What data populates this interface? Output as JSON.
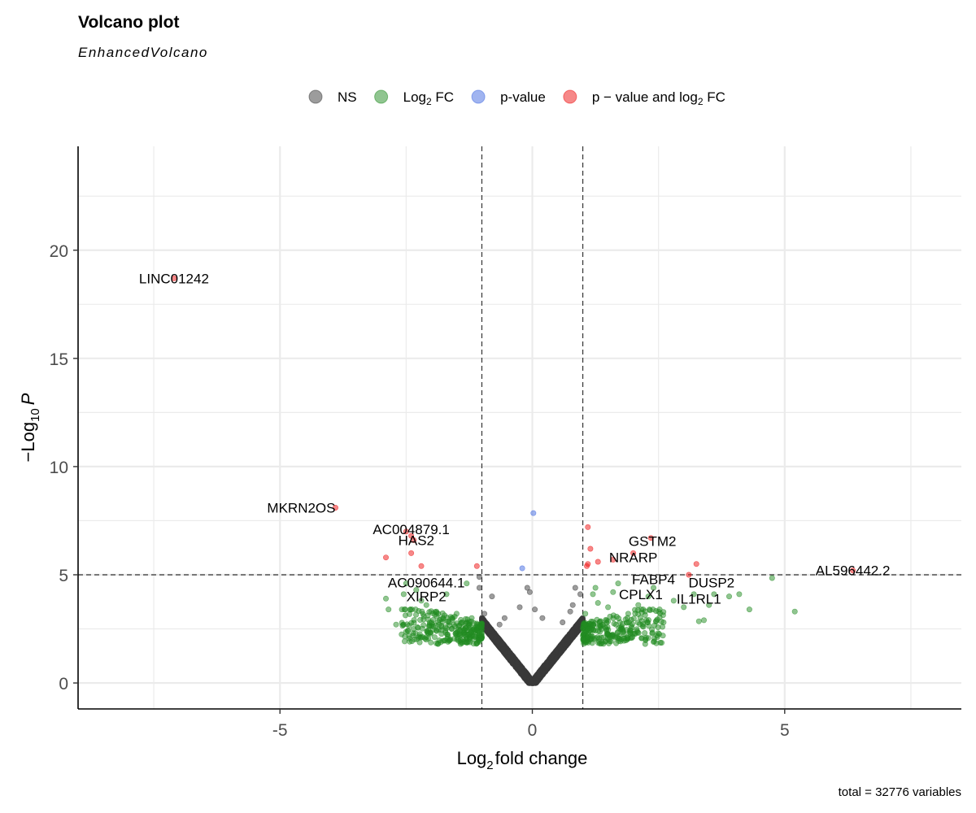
{
  "chart_data": {
    "type": "scatter",
    "title": "Volcano plot",
    "subtitle": "EnhancedVolcano",
    "caption": "total = 32776 variables",
    "xlabel": "fold change",
    "xlabel_prefix": "Log",
    "xlabel_sub": "2",
    "ylabel": "P",
    "ylabel_prefix": "−Log",
    "ylabel_sub": "10",
    "xlim": [
      -9.0,
      8.5
    ],
    "ylim": [
      -1.2,
      24.8
    ],
    "x_ticks": [
      -5,
      0,
      5
    ],
    "x_tick_labels": [
      "-5",
      "0",
      "5"
    ],
    "y_ticks": [
      0,
      5,
      10,
      15,
      20
    ],
    "y_tick_labels": [
      "0",
      "5",
      "10",
      "15",
      "20"
    ],
    "grid": true,
    "fc_cutoff": 1,
    "p_cutoff_log10": 5,
    "legend_position": "top",
    "legend": [
      {
        "key": "ns",
        "label": "NS",
        "color": "#3a3a3a"
      },
      {
        "key": "fc",
        "label": "Log",
        "sub": "2",
        "suffix": " FC",
        "color": "#228b22"
      },
      {
        "key": "p",
        "label": "p-value",
        "color": "#4169e1"
      },
      {
        "key": "both",
        "label": "p − value and log",
        "sub": "2",
        "suffix": " FC",
        "color": "#ee1111"
      }
    ],
    "series": [
      {
        "key": "both",
        "points": [
          [
            -7.1,
            18.7
          ],
          [
            -3.9,
            8.1
          ],
          [
            -2.5,
            7.0
          ],
          [
            -2.4,
            6.8
          ],
          [
            -2.35,
            6.6
          ],
          [
            -2.4,
            6.0
          ],
          [
            -2.9,
            5.8
          ],
          [
            -2.2,
            5.4
          ],
          [
            -1.1,
            5.4
          ],
          [
            1.1,
            5.5
          ],
          [
            1.15,
            6.2
          ],
          [
            1.1,
            7.2
          ],
          [
            1.3,
            5.6
          ],
          [
            1.6,
            5.7
          ],
          [
            2.0,
            6.0
          ],
          [
            2.35,
            6.7
          ],
          [
            3.1,
            5.0
          ],
          [
            3.25,
            5.5
          ],
          [
            6.35,
            5.2
          ],
          [
            1.08,
            5.4
          ]
        ]
      },
      {
        "key": "p",
        "points": [
          [
            0.02,
            7.85
          ],
          [
            -0.2,
            5.3
          ]
        ]
      },
      {
        "key": "fc",
        "points": [
          [
            -2.9,
            3.9
          ],
          [
            -2.85,
            3.4
          ],
          [
            -2.7,
            2.7
          ],
          [
            -2.55,
            4.1
          ],
          [
            -2.3,
            4.3
          ],
          [
            -2.2,
            3.8
          ],
          [
            -2.1,
            3.6
          ],
          [
            -1.9,
            3.3
          ],
          [
            -1.7,
            4.1
          ],
          [
            -1.5,
            3.2
          ],
          [
            -1.3,
            4.6
          ],
          [
            -2.5,
            4.6
          ],
          [
            -2.0,
            2.8
          ],
          [
            -1.8,
            2.6
          ],
          [
            -1.6,
            2.5
          ],
          [
            -1.4,
            2.8
          ],
          [
            -1.2,
            3.0
          ],
          [
            -1.1,
            2.6
          ],
          [
            1.2,
            4.1
          ],
          [
            1.3,
            3.7
          ],
          [
            1.5,
            3.5
          ],
          [
            1.7,
            4.6
          ],
          [
            1.9,
            3.2
          ],
          [
            2.1,
            3.6
          ],
          [
            2.3,
            4.0
          ],
          [
            2.5,
            3.3
          ],
          [
            2.8,
            3.8
          ],
          [
            3.0,
            3.5
          ],
          [
            3.2,
            4.1
          ],
          [
            3.4,
            2.9
          ],
          [
            3.5,
            3.6
          ],
          [
            3.6,
            4.1
          ],
          [
            3.9,
            4.0
          ],
          [
            4.1,
            4.1
          ],
          [
            4.3,
            3.4
          ],
          [
            4.75,
            4.85
          ],
          [
            5.2,
            3.3
          ],
          [
            1.1,
            2.5
          ],
          [
            1.4,
            2.7
          ],
          [
            1.8,
            2.4
          ],
          [
            2.2,
            2.6
          ],
          [
            2.6,
            2.8
          ],
          [
            3.3,
            2.85
          ],
          [
            1.25,
            4.4
          ],
          [
            2.4,
            4.4
          ],
          [
            1.6,
            4.2
          ],
          [
            1.05,
            3.2
          ]
        ],
        "cluster": {
          "x_abs_min": 1.0,
          "x_abs_max": 2.6,
          "y_min": 1.8,
          "y_max": 3.4,
          "count": 520,
          "seed": 7
        }
      },
      {
        "key": "ns",
        "points": [
          [
            -1.05,
            4.9
          ],
          [
            -1.05,
            4.4
          ],
          [
            -0.95,
            3.2
          ],
          [
            -0.8,
            4.0
          ],
          [
            -0.65,
            2.7
          ],
          [
            -0.55,
            3.0
          ],
          [
            -0.25,
            3.5
          ],
          [
            -0.1,
            4.4
          ],
          [
            -0.05,
            4.2
          ],
          [
            0.05,
            3.4
          ],
          [
            0.2,
            3.0
          ],
          [
            0.85,
            4.4
          ],
          [
            0.8,
            3.6
          ],
          [
            0.95,
            4.1
          ],
          [
            0.75,
            3.3
          ],
          [
            0.6,
            2.8
          ]
        ],
        "v_shape": {
          "count": 4800,
          "slope": 2.9,
          "x_abs_max": 1.0,
          "seed": 3
        }
      }
    ],
    "labels": [
      {
        "text": "LINC01242",
        "x": -7.1,
        "y": 18.7,
        "anchor": "middle"
      },
      {
        "text": "MKRN2OS",
        "x": -3.9,
        "y": 8.1,
        "anchor": "end"
      },
      {
        "text": "AC004879.1",
        "x": -2.4,
        "y": 7.1,
        "anchor": "middle"
      },
      {
        "text": "HAS2",
        "x": -2.3,
        "y": 6.6,
        "anchor": "middle"
      },
      {
        "text": "AC090644.1",
        "x": -2.1,
        "y": 4.65,
        "anchor": "middle"
      },
      {
        "text": "XIRP2",
        "x": -2.1,
        "y": 4.0,
        "anchor": "middle"
      },
      {
        "text": "GSTM2",
        "x": 2.38,
        "y": 6.55,
        "anchor": "middle"
      },
      {
        "text": "NRARP",
        "x": 2.0,
        "y": 5.8,
        "anchor": "middle"
      },
      {
        "text": "FABP4",
        "x": 2.4,
        "y": 4.8,
        "anchor": "middle"
      },
      {
        "text": "DUSP2",
        "x": 3.55,
        "y": 4.65,
        "anchor": "middle"
      },
      {
        "text": "CPLX1",
        "x": 2.15,
        "y": 4.1,
        "anchor": "middle"
      },
      {
        "text": "IL1RL1",
        "x": 3.3,
        "y": 3.9,
        "anchor": "middle"
      },
      {
        "text": "AL596442.2",
        "x": 6.35,
        "y": 5.2,
        "anchor": "middle"
      }
    ]
  }
}
